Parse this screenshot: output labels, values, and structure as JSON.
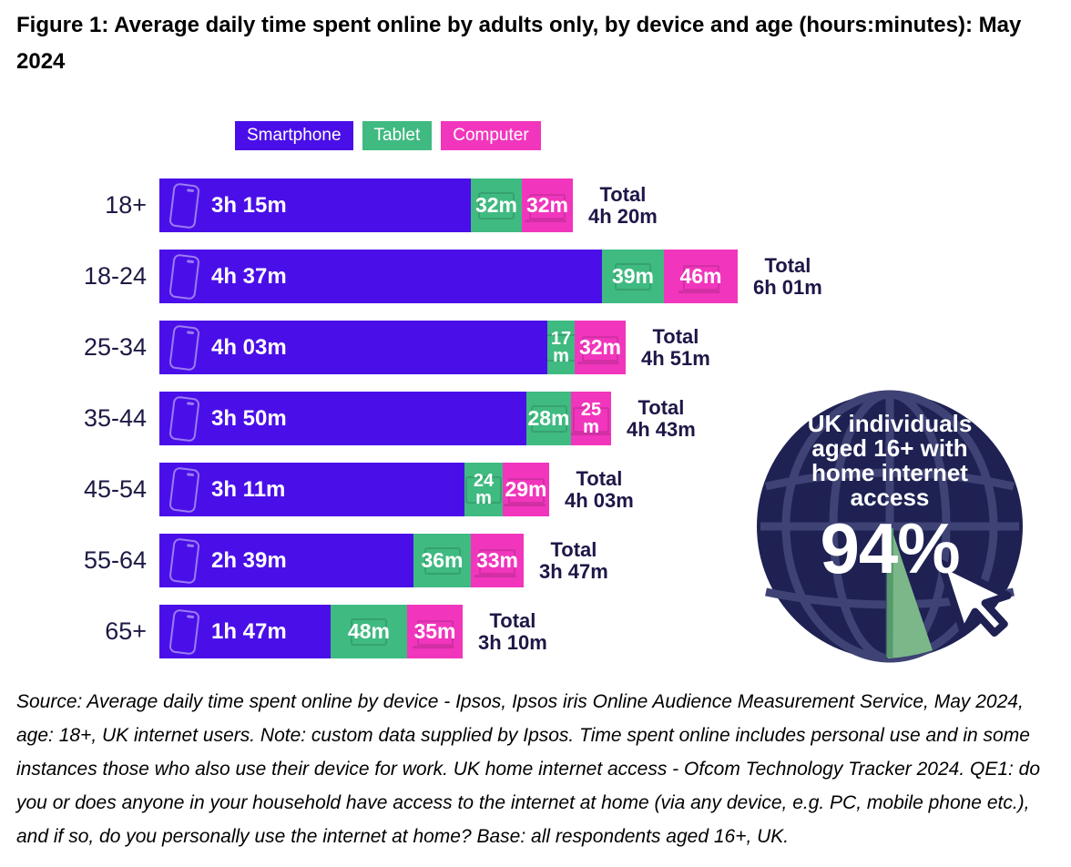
{
  "title": "Figure 1: Average daily time spent online by adults only, by device and age (hours:minutes): May 2024",
  "legend": [
    {
      "label": "Smartphone",
      "color": "#4a0fe8",
      "icon": "smartphone-icon"
    },
    {
      "label": "Tablet",
      "color": "#3fba81",
      "icon": "tablet-icon"
    },
    {
      "label": "Computer",
      "color": "#f136bd",
      "icon": "laptop-icon"
    }
  ],
  "chart_data": {
    "type": "bar",
    "orientation": "horizontal",
    "stacked": true,
    "unit": "minutes per day",
    "categories": [
      "18+",
      "18-24",
      "25-34",
      "35-44",
      "45-54",
      "55-64",
      "65+"
    ],
    "series": [
      {
        "name": "Smartphone",
        "color": "#4a0fe8",
        "icon": "smartphone-icon",
        "values_min": [
          195,
          277,
          243,
          230,
          191,
          159,
          107
        ],
        "labels": [
          "3h 15m",
          "4h 37m",
          "4h 03m",
          "3h 50m",
          "3h 11m",
          "2h 39m",
          "1h 47m"
        ]
      },
      {
        "name": "Tablet",
        "color": "#3fba81",
        "icon": "tablet-icon",
        "values_min": [
          32,
          39,
          17,
          28,
          24,
          36,
          48
        ],
        "labels": [
          "32m",
          "39m",
          "17m",
          "28m",
          "24m",
          "36m",
          "48m"
        ]
      },
      {
        "name": "Computer",
        "color": "#f136bd",
        "icon": "laptop-icon",
        "values_min": [
          32,
          46,
          32,
          25,
          29,
          33,
          35
        ],
        "labels": [
          "32m",
          "46m",
          "32m",
          "25m",
          "29m",
          "33m",
          "35m"
        ]
      }
    ],
    "total_label": "Total",
    "totals": [
      "4h 20m",
      "6h 01m",
      "4h 51m",
      "4h 43m",
      "4h 03m",
      "3h 47m",
      "3h 10m"
    ],
    "legend_position": "top"
  },
  "badge": {
    "lines": [
      "UK individuals",
      "aged 16+ with",
      "home internet",
      "access"
    ],
    "value": "94%",
    "disc_color": "#1e2152",
    "wireframe_color": "#3e4274",
    "wedge_color": "#7cb78a",
    "icons": [
      "globe-icon",
      "cursor-icon"
    ]
  },
  "source": "Source: Average daily time spent online by device - Ipsos, Ipsos iris Online Audience Measurement Service, May 2024, age: 18+, UK internet users. Note: custom data supplied by Ipsos. Time spent online includes personal use and in some instances those who also use their device for work. UK home internet access - Ofcom Technology Tracker 2024. QE1: do you or does anyone in your household have access to the internet at home (via any device, e.g. PC, mobile phone etc.), and if so, do you personally use the internet at home? Base: all respondents aged 16+, UK.",
  "colors": {
    "smartphone": "#4a0fe8",
    "tablet": "#3fba81",
    "computer": "#f136bd",
    "label_navy": "#1d1747",
    "badge_navy": "#1e2152"
  }
}
